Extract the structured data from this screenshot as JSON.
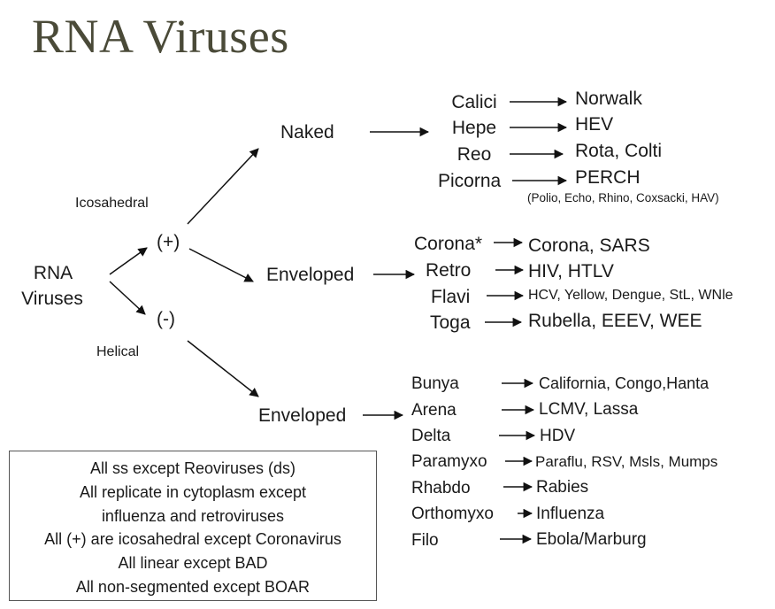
{
  "title": "RNA Viruses",
  "root": {
    "line1": "RNA",
    "line2": "Viruses"
  },
  "branches": {
    "icosahedral": "Icosahedral",
    "helical": "Helical",
    "positive": "(+)",
    "negative": "(-)"
  },
  "positive": {
    "naked": {
      "label": "Naked",
      "families": [
        {
          "family": "Calici",
          "examples": "Norwalk"
        },
        {
          "family": "Hepe",
          "examples": "HEV"
        },
        {
          "family": "Reo",
          "examples": "Rota, Colti"
        },
        {
          "family": "Picorna",
          "examples": "PERCH"
        }
      ],
      "perch_note": "(Polio, Echo, Rhino, Coxsacki, HAV)"
    },
    "enveloped": {
      "label": "Enveloped",
      "families": [
        {
          "family": "Corona*",
          "examples": "Corona, SARS"
        },
        {
          "family": "Retro",
          "examples": "HIV, HTLV"
        },
        {
          "family": "Flavi",
          "examples": "HCV, Yellow, Dengue, StL, WNle"
        },
        {
          "family": "Toga",
          "examples": "Rubella, EEEV, WEE"
        }
      ]
    }
  },
  "negative": {
    "enveloped": {
      "label": "Enveloped",
      "families": [
        {
          "family": "Bunya",
          "examples": "California, Congo,Hanta"
        },
        {
          "family": "Arena",
          "examples": "LCMV, Lassa"
        },
        {
          "family": "Delta",
          "examples": "HDV"
        },
        {
          "family": "Paramyxo",
          "examples": "Paraflu, RSV,  Msls, Mumps"
        },
        {
          "family": "Rhabdo",
          "examples": "Rabies"
        },
        {
          "family": "Orthomyxo",
          "examples": "Influenza"
        },
        {
          "family": "Filo",
          "examples": "Ebola/Marburg"
        }
      ]
    }
  },
  "notes": [
    "All ss except Reoviruses (ds)",
    "All replicate in cytoplasm except",
    "influenza and retroviruses",
    "All (+) are icosahedral except Coronavirus",
    "All linear except BAD",
    "All non-segmented except BOAR"
  ]
}
